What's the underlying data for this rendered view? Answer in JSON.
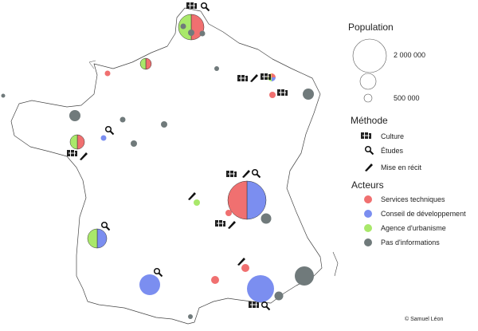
{
  "colors": {
    "services": "#f07070",
    "conseil": "#7b8ef0",
    "agence": "#a9e86a",
    "none": "#707a7b",
    "outline": "#333333"
  },
  "legend": {
    "population": {
      "title": "Population",
      "items": [
        {
          "label": "2 000 000",
          "value": 2000000
        },
        {
          "label": "500 000",
          "value": 500000
        },
        {
          "label": "",
          "value": 100000
        }
      ]
    },
    "methode": {
      "title": "Méthode",
      "items": [
        {
          "label": "Culture",
          "icon": "camera-icon"
        },
        {
          "label": "Études",
          "icon": "magnifier-icon"
        },
        {
          "label": "Mise en récit",
          "icon": "pen-nib-icon"
        }
      ]
    },
    "acteurs": {
      "title": "Acteurs",
      "items": [
        {
          "label": "Services techniques",
          "color": "#f07070"
        },
        {
          "label": "Conseil de développement",
          "color": "#7b8ef0"
        },
        {
          "label": "Agence d'urbanisme",
          "color": "#a9e86a"
        },
        {
          "label": "Pas d'informations",
          "color": "#707a7b"
        }
      ]
    }
  },
  "credit": "© Samuel Léon"
}
